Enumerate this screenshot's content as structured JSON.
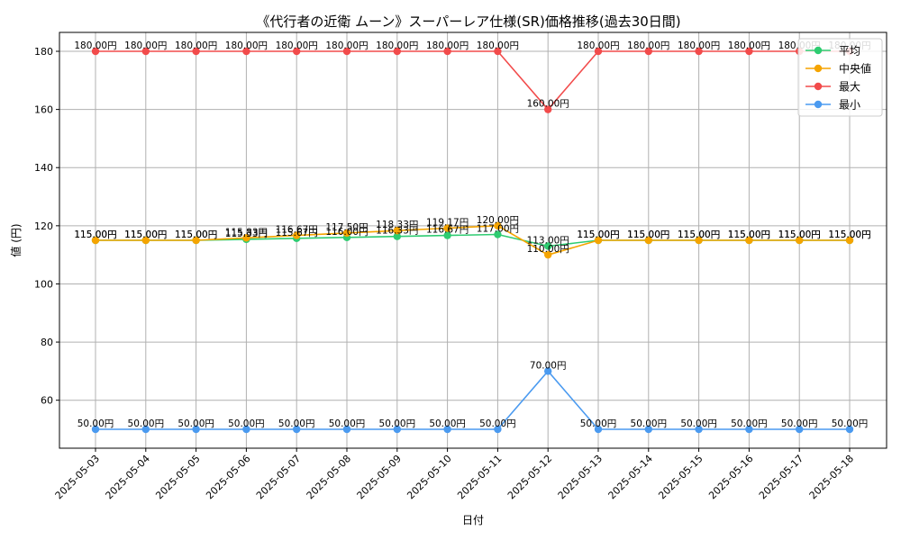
{
  "chart_data": {
    "type": "line",
    "title": "《代行者の近衛 ムーン》スーパーレア仕様(SR)価格推移(過去30日間)",
    "xlabel": "日付",
    "ylabel": "値 (円)",
    "ylim": [
      43.5,
      186.5
    ],
    "yticks": [
      60,
      80,
      100,
      120,
      140,
      160,
      180
    ],
    "grid": true,
    "legend_position": "top-right",
    "value_suffix": "円",
    "categories": [
      "2025-05-03",
      "2025-05-04",
      "2025-05-05",
      "2025-05-06",
      "2025-05-07",
      "2025-05-08",
      "2025-05-09",
      "2025-05-10",
      "2025-05-11",
      "2025-05-12",
      "2025-05-13",
      "2025-05-14",
      "2025-05-15",
      "2025-05-16",
      "2025-05-17",
      "2025-05-18"
    ],
    "series": [
      {
        "name": "平均",
        "color": "#2ecc71",
        "values": [
          115.0,
          115.0,
          115.0,
          115.33,
          115.67,
          116.0,
          116.33,
          116.67,
          117.0,
          113.0,
          115.0,
          115.0,
          115.0,
          115.0,
          115.0,
          115.0
        ]
      },
      {
        "name": "中央値",
        "color": "#f5a400",
        "values": [
          115.0,
          115.0,
          115.0,
          115.83,
          116.67,
          117.5,
          118.33,
          119.17,
          120.0,
          110.0,
          115.0,
          115.0,
          115.0,
          115.0,
          115.0,
          115.0
        ]
      },
      {
        "name": "最大",
        "color": "#f24b4b",
        "values": [
          180.0,
          180.0,
          180.0,
          180.0,
          180.0,
          180.0,
          180.0,
          180.0,
          180.0,
          160.0,
          180.0,
          180.0,
          180.0,
          180.0,
          180.0,
          180.0
        ]
      },
      {
        "name": "最小",
        "color": "#4a9af0",
        "values": [
          50.0,
          50.0,
          50.0,
          50.0,
          50.0,
          50.0,
          50.0,
          50.0,
          50.0,
          70.0,
          50.0,
          50.0,
          50.0,
          50.0,
          50.0,
          50.0
        ]
      }
    ]
  }
}
